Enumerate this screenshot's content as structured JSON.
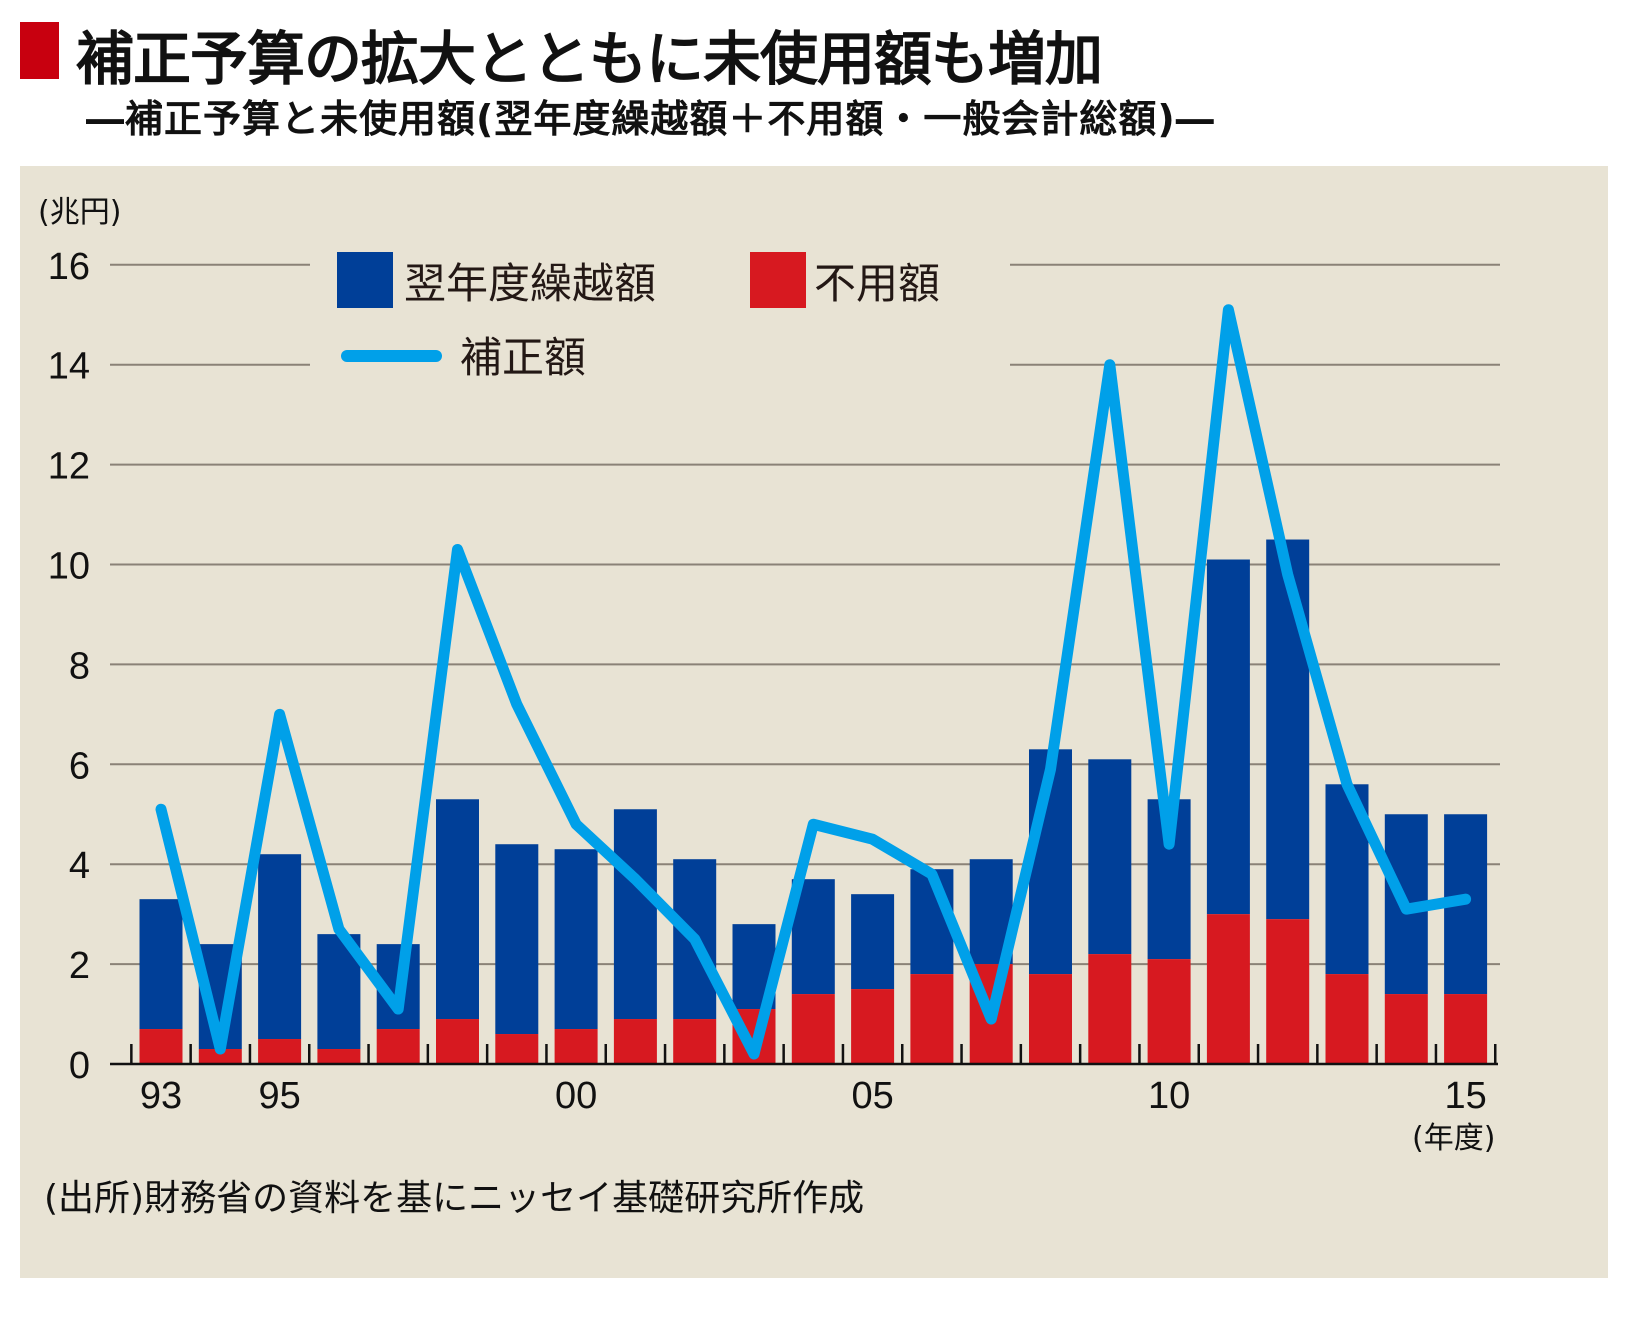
{
  "header": {
    "title": "補正予算の拡大とともに未使用額も増加",
    "subtitle": "―補正予算と未使用額(翌年度繰越額＋不用額・一般会計総額)―"
  },
  "colors": {
    "title_square": "#c8000f",
    "panel_bg": "#e8e3d4",
    "carryover": "#003f98",
    "unused": "#d71920",
    "supplementary_line": "#00a0e9",
    "grid": "#8a8277"
  },
  "footer": {
    "source": "(出所)財務省の資料を基にニッセイ基礎研究所作成"
  },
  "chart_data": {
    "type": "bar",
    "stacked": true,
    "title": "補正予算の拡大とともに未使用額も増加",
    "subtitle": "補正予算と未使用額(翌年度繰越額＋不用額・一般会計総額)",
    "ylabel": "(兆円)",
    "xlabel": "(年度)",
    "ylim": [
      0,
      16
    ],
    "yticks": [
      "0",
      "2",
      "4",
      "6",
      "8",
      "10",
      "12",
      "14",
      "16"
    ],
    "ytick_values": [
      0,
      2,
      4,
      6,
      8,
      10,
      12,
      14,
      16
    ],
    "grid": true,
    "legend_position": "top-center",
    "categories": [
      "93",
      "94",
      "95",
      "96",
      "97",
      "98",
      "99",
      "00",
      "01",
      "02",
      "03",
      "04",
      "05",
      "06",
      "07",
      "08",
      "09",
      "10",
      "11",
      "12",
      "13",
      "14",
      "15"
    ],
    "xtick_labels": {
      "0": "93",
      "2": "95",
      "7": "00",
      "12": "05",
      "17": "10",
      "22": "15"
    },
    "series": [
      {
        "name": "不用額",
        "kind": "bar",
        "values": [
          0.7,
          0.3,
          0.5,
          0.3,
          0.7,
          0.9,
          0.6,
          0.7,
          0.9,
          0.9,
          1.1,
          1.4,
          1.5,
          1.8,
          2.0,
          1.8,
          2.2,
          2.1,
          3.0,
          2.9,
          1.8,
          1.4,
          1.4
        ]
      },
      {
        "name": "翌年度繰越額",
        "kind": "bar",
        "values": [
          2.6,
          2.1,
          3.7,
          2.3,
          1.7,
          4.4,
          3.8,
          3.6,
          4.2,
          3.2,
          1.7,
          2.3,
          1.9,
          2.1,
          2.1,
          4.5,
          3.9,
          3.2,
          7.1,
          7.6,
          3.8,
          3.6,
          3.6
        ]
      },
      {
        "name": "補正額",
        "kind": "line",
        "values": [
          5.1,
          0.3,
          7.0,
          2.7,
          1.1,
          10.3,
          7.2,
          4.8,
          3.7,
          2.5,
          0.2,
          4.8,
          4.5,
          3.8,
          0.9,
          5.9,
          14.0,
          4.4,
          15.1,
          9.8,
          5.6,
          3.1,
          3.3
        ]
      }
    ],
    "legend": [
      {
        "label": "翌年度繰越額",
        "kind": "square"
      },
      {
        "label": "不用額",
        "kind": "square"
      },
      {
        "label": "補正額",
        "kind": "line"
      }
    ]
  }
}
